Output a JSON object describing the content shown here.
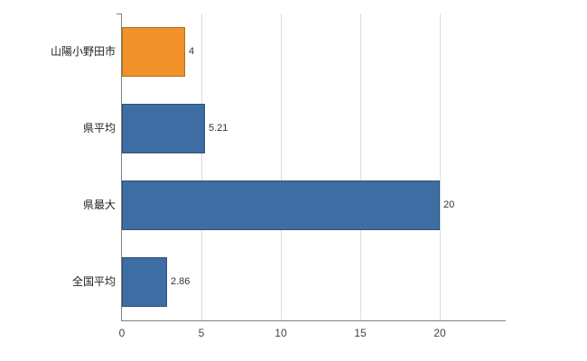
{
  "chart_data": {
    "type": "bar",
    "orientation": "horizontal",
    "title": "",
    "xlabel": "",
    "ylabel": "",
    "categories": [
      "山陽小野田市",
      "県平均",
      "県最大",
      "全国平均"
    ],
    "values": [
      4,
      5.21,
      20,
      2.86
    ],
    "value_labels": [
      "4",
      "5.21",
      "20",
      "2.86"
    ],
    "series_colors": [
      "#f09229",
      "#3d6da3",
      "#3d6da3",
      "#3d6da3"
    ],
    "x_ticks": [
      0,
      5,
      10,
      15,
      20
    ],
    "x_tick_labels": [
      "0",
      "5",
      "10",
      "15",
      "20"
    ],
    "xlim": [
      0,
      24.15
    ],
    "grid": true,
    "legend": "none"
  },
  "colors": {
    "highlight_bar": "#f09229",
    "base_bar": "#3d6da3",
    "grid": "#dcdcdc",
    "axis": "#808080",
    "label_text": "#222222",
    "value_text": "#333333",
    "background": "#ffffff"
  }
}
